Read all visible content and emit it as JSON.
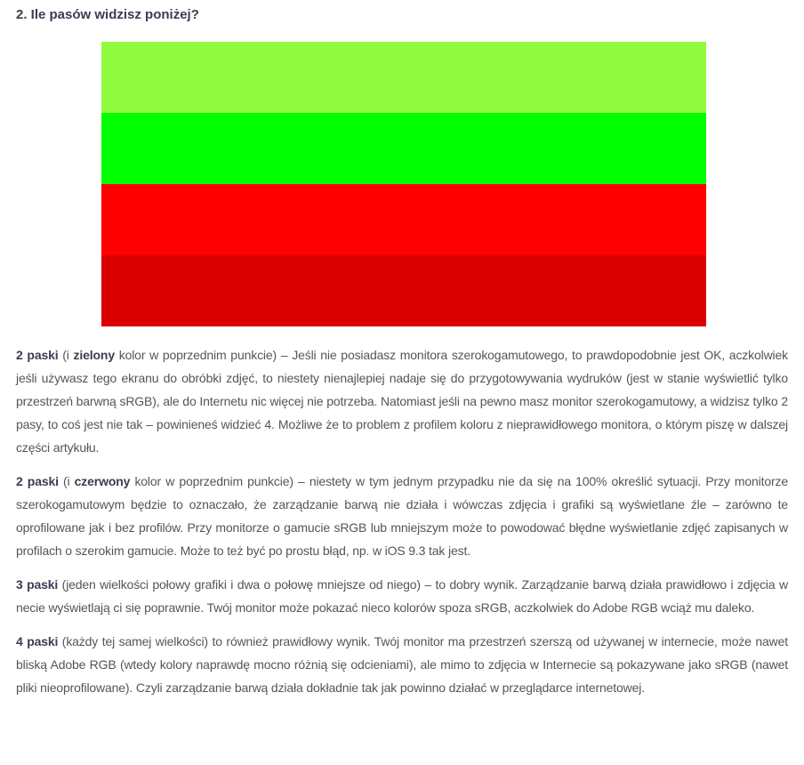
{
  "title": "2. Ile pasów widzisz poniżej?",
  "stripes": [
    {
      "color": "#91fb3f"
    },
    {
      "color": "#00ff00"
    },
    {
      "color": "#ff0000"
    },
    {
      "color": "#db0000"
    }
  ],
  "paragraphs": [
    {
      "lead": "2 paski",
      "pre": " (i ",
      "bold2": "zielony",
      "text": " kolor w poprzednim punkcie) – Jeśli nie posiadasz monitora szerokogamutowego, to prawdopodobnie jest OK, aczkolwiek jeśli używasz tego ekranu do obróbki zdjęć, to niestety nienajlepiej nadaje się do przygotowywania wydruków (jest w stanie wyświetlić tylko przestrzeń barwną sRGB), ale do Internetu nic więcej nie potrzeba. Natomiast jeśli na pewno masz monitor szerokogamutowy, a widzisz tylko 2 pasy, to coś jest nie tak – powinieneś widzieć 4. Możliwe że to problem z profilem koloru z nieprawidłowego monitora, o którym piszę w dalszej części artykułu."
    },
    {
      "lead": "2 paski",
      "pre": " (i ",
      "bold2": "czerwony",
      "text": " kolor w poprzednim punkcie) – niestety w tym jednym przypadku nie da się na 100% określić sytuacji. Przy monitorze szerokogamutowym będzie to oznaczało, że zarządzanie barwą nie działa i wówczas zdjęcia i grafiki są wyświetlane źle – zarówno te oprofilowane jak i bez profilów. Przy monitorze o gamucie sRGB lub mniejszym może to powodować błędne wyświetlanie zdjęć zapisanych w profilach o szerokim gamucie. Może to też być po prostu błąd, np. w iOS 9.3 tak jest."
    },
    {
      "lead": "3 paski",
      "text": " (jeden wielkości połowy grafiki i dwa o połowę mniejsze od niego) – to dobry wynik. Zarządzanie barwą działa prawidłowo i zdjęcia w necie wyświetlają ci się poprawnie. Twój monitor może pokazać nieco kolorów spoza sRGB, aczkolwiek do Adobe RGB wciąż mu daleko."
    },
    {
      "lead": "4 paski",
      "text": " (każdy tej samej wielkości) to również prawidłowy wynik. Twój monitor ma przestrzeń szerszą od używanej w internecie, może nawet bliską Adobe RGB (wtedy kolory naprawdę mocno różnią się odcieniami), ale mimo to zdjęcia w Internecie są pokazywane jako sRGB (nawet pliki nieoprofilowane). Czyli zarządzanie barwą działa dokładnie tak jak powinno działać w przeglądarce internetowej."
    }
  ]
}
